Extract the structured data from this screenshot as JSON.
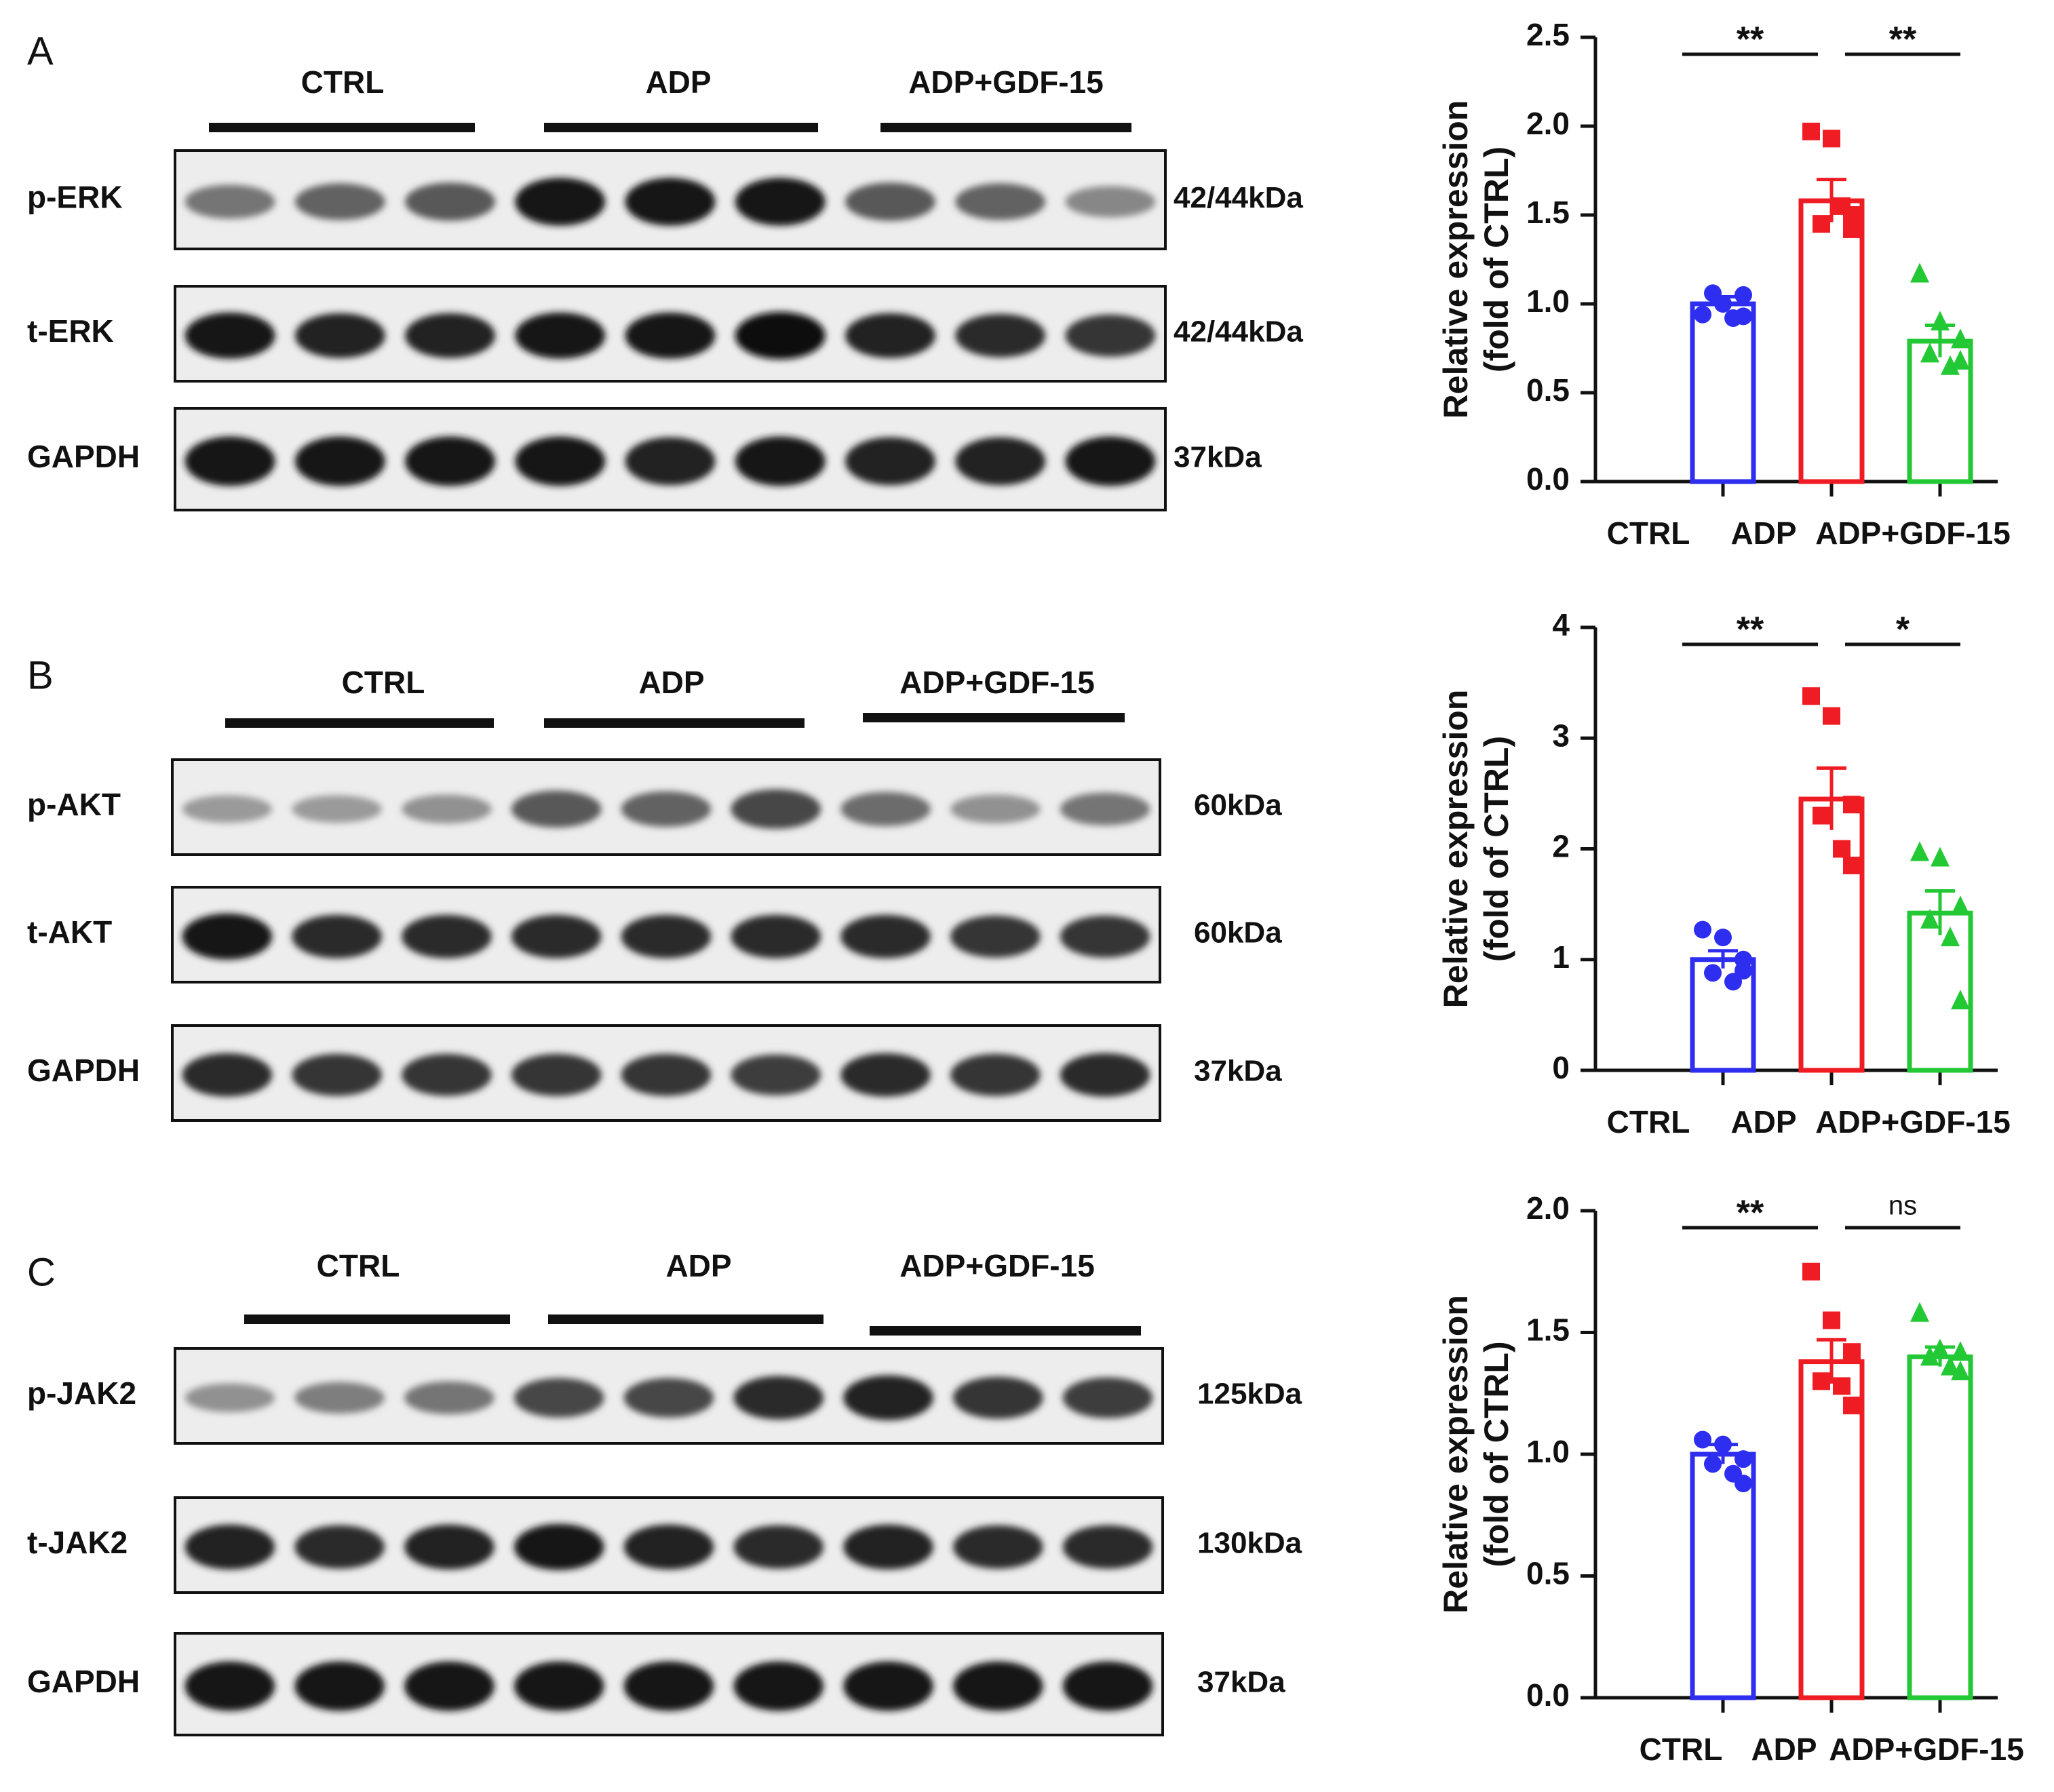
{
  "chart_data": [
    {
      "panel_label": "A",
      "blot": {
        "groups": [
          "CTRL",
          "ADP",
          "ADP+GDF-15"
        ],
        "rows": [
          {
            "label": "p-ERK",
            "size": "42/44kDa",
            "intensity": [
              0.45,
              0.55,
              0.6,
              0.95,
              0.95,
              0.95,
              0.6,
              0.55,
              0.35
            ]
          },
          {
            "label": "t-ERK",
            "size": "42/44kDa",
            "intensity": [
              0.95,
              0.9,
              0.9,
              0.95,
              0.95,
              1.0,
              0.9,
              0.85,
              0.8
            ]
          },
          {
            "label": "GAPDH",
            "size": "37kDa",
            "intensity": [
              0.95,
              0.95,
              0.95,
              0.95,
              0.9,
              0.95,
              0.9,
              0.9,
              0.95
            ]
          }
        ]
      },
      "type": "bar",
      "categories": [
        "CTRL",
        "ADP",
        "ADP+GDF-15"
      ],
      "values": [
        1.0,
        1.58,
        0.79
      ],
      "errors": [
        0.04,
        0.12,
        0.09
      ],
      "points": [
        [
          0.94,
          1.0,
          1.05,
          1.06,
          0.92,
          0.93
        ],
        [
          1.97,
          1.93,
          1.5,
          1.45,
          1.55,
          1.42
        ],
        [
          1.17,
          0.9,
          0.8,
          0.72,
          0.65,
          0.68
        ]
      ],
      "markers": [
        "circle",
        "square",
        "triangle"
      ],
      "colors": [
        "#2e2ef0",
        "#f01c24",
        "#22c934"
      ],
      "ylabel": "Relative expression",
      "ylabel2": "(fold of CTRL)",
      "ylim": [
        0,
        2.5
      ],
      "yticks": [
        "0.0",
        "0.5",
        "1.0",
        "1.5",
        "2.0",
        "2.5"
      ],
      "significance": [
        "**",
        "**"
      ]
    },
    {
      "panel_label": "B",
      "blot": {
        "groups": [
          "CTRL",
          "ADP",
          "ADP+GDF-15"
        ],
        "rows": [
          {
            "label": "p-AKT",
            "size": "60kDa",
            "intensity": [
              0.25,
              0.25,
              0.3,
              0.6,
              0.55,
              0.7,
              0.5,
              0.3,
              0.45
            ]
          },
          {
            "label": "t-AKT",
            "size": "60kDa",
            "intensity": [
              0.95,
              0.85,
              0.85,
              0.85,
              0.85,
              0.85,
              0.85,
              0.8,
              0.8
            ]
          },
          {
            "label": "GAPDH",
            "size": "37kDa",
            "intensity": [
              0.85,
              0.8,
              0.8,
              0.8,
              0.8,
              0.75,
              0.85,
              0.8,
              0.85
            ]
          }
        ]
      },
      "type": "bar",
      "categories": [
        "CTRL",
        "ADP",
        "ADP+GDF-15"
      ],
      "values": [
        1.0,
        2.45,
        1.42
      ],
      "errors": [
        0.08,
        0.28,
        0.2
      ],
      "points": [
        [
          1.27,
          1.2,
          1.0,
          0.88,
          0.8,
          0.9
        ],
        [
          3.38,
          3.2,
          2.4,
          2.3,
          2.0,
          1.85
        ],
        [
          1.97,
          1.92,
          1.48,
          1.36,
          1.2,
          0.63
        ]
      ],
      "markers": [
        "circle",
        "square",
        "triangle"
      ],
      "colors": [
        "#2e2ef0",
        "#f01c24",
        "#22c934"
      ],
      "ylabel": "Relative expression",
      "ylabel2": "(fold of CTRL)",
      "ylim": [
        0,
        4
      ],
      "yticks": [
        "0",
        "1",
        "2",
        "3",
        "4"
      ],
      "significance": [
        "**",
        "*"
      ]
    },
    {
      "panel_label": "C",
      "blot": {
        "groups": [
          "CTRL",
          "ADP",
          "ADP+GDF-15"
        ],
        "rows": [
          {
            "label": "p-JAK2",
            "size": "125kDa",
            "intensity": [
              0.3,
              0.4,
              0.45,
              0.7,
              0.7,
              0.85,
              0.9,
              0.8,
              0.75
            ]
          },
          {
            "label": "t-JAK2",
            "size": "130kDa",
            "intensity": [
              0.9,
              0.85,
              0.9,
              0.95,
              0.9,
              0.85,
              0.9,
              0.85,
              0.85
            ]
          },
          {
            "label": "GAPDH",
            "size": "37kDa",
            "intensity": [
              0.95,
              0.95,
              0.95,
              0.95,
              0.95,
              0.95,
              0.95,
              0.95,
              0.95
            ]
          }
        ]
      },
      "type": "bar",
      "categories": [
        "CTRL",
        "ADP",
        "ADP+GDF-15"
      ],
      "values": [
        1.0,
        1.38,
        1.4
      ],
      "errors": [
        0.04,
        0.09,
        0.04
      ],
      "points": [
        [
          1.06,
          1.04,
          0.98,
          0.96,
          0.92,
          0.88
        ],
        [
          1.75,
          1.55,
          1.42,
          1.3,
          1.28,
          1.2
        ],
        [
          1.58,
          1.43,
          1.42,
          1.4,
          1.36,
          1.34
        ]
      ],
      "markers": [
        "circle",
        "square",
        "triangle"
      ],
      "colors": [
        "#2e2ef0",
        "#f01c24",
        "#22c934"
      ],
      "ylabel": "Relative expression",
      "ylabel2": "(fold of CTRL)",
      "ylim": [
        0,
        2.0
      ],
      "yticks": [
        "0.0",
        "0.5",
        "1.0",
        "1.5",
        "2.0"
      ],
      "significance": [
        "**",
        "ns"
      ]
    }
  ]
}
